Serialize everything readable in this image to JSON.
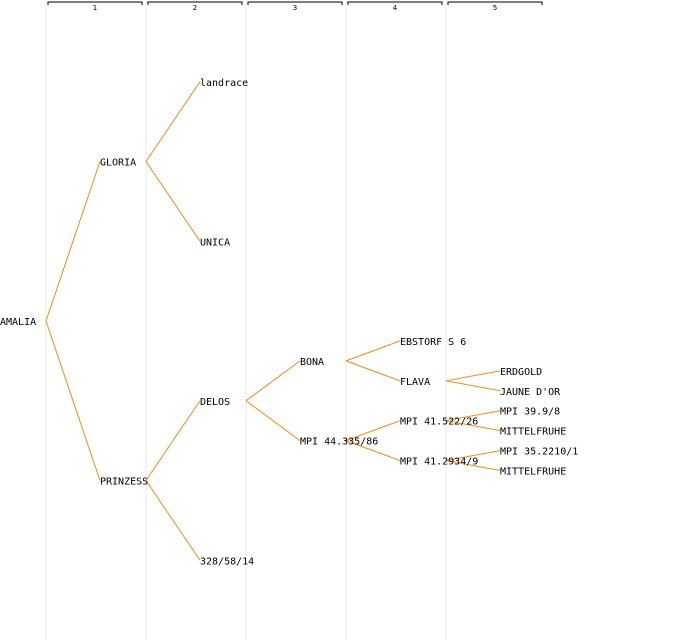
{
  "columns": [
    "1",
    "2",
    "3",
    "4",
    "5"
  ],
  "colors": {
    "edge": "#f08a18",
    "guide": "#e8e8e8",
    "text": "#000000",
    "highlight": "#0000cc"
  },
  "tree": {
    "label": "AMALIA",
    "children": [
      {
        "label": "GLORIA",
        "highlight": true,
        "children": [
          {
            "label": "landrace"
          },
          {
            "label": "UNICA"
          }
        ]
      },
      {
        "label": "PRINZESS",
        "children": [
          {
            "label": "DELOS",
            "children": [
              {
                "label": "BONA",
                "children": [
                  {
                    "label": "EBSTORF S 6"
                  },
                  {
                    "label": "FLAVA",
                    "children": [
                      {
                        "label": "ERDGOLD"
                      },
                      {
                        "label": "JAUNE D'OR"
                      }
                    ]
                  }
                ]
              },
              {
                "label": "MPI 44.335/86",
                "children": [
                  {
                    "label": "MPI 41.522/26",
                    "children": [
                      {
                        "label": "MPI 39.9/8"
                      },
                      {
                        "label": "MITTELFRUHE"
                      }
                    ]
                  },
                  {
                    "label": "MPI 41.2934/9",
                    "children": [
                      {
                        "label": "MPI 35.2210/1"
                      },
                      {
                        "label": "MITTELFRUHE"
                      }
                    ]
                  }
                ]
              }
            ]
          },
          {
            "label": "328/58/14"
          }
        ]
      }
    ]
  }
}
